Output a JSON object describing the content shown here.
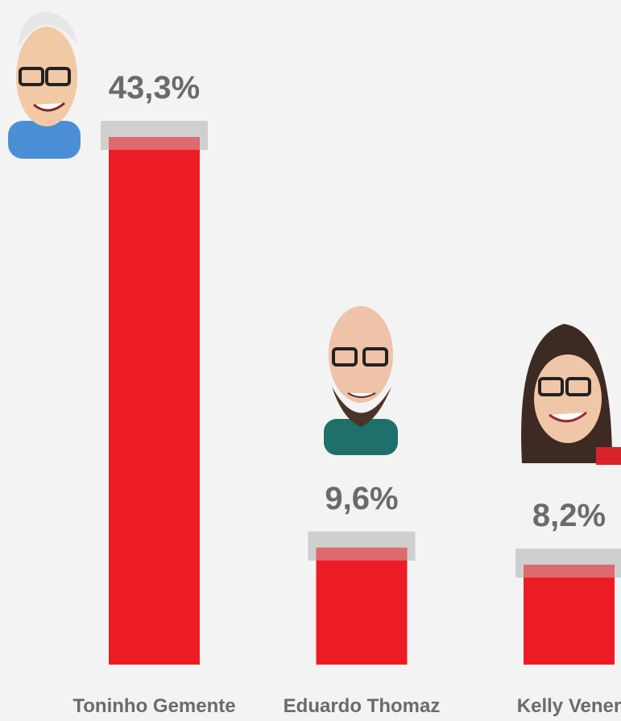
{
  "chart_data": {
    "type": "bar",
    "categories": [
      "Toninho Gemente",
      "Eduardo Thomaz",
      "Kelly Vener"
    ],
    "values": [
      43.3,
      9.6,
      8.2
    ],
    "value_labels": [
      "43,3%",
      "9,6%",
      "8,2%"
    ],
    "color": "#ed1c24"
  }
}
